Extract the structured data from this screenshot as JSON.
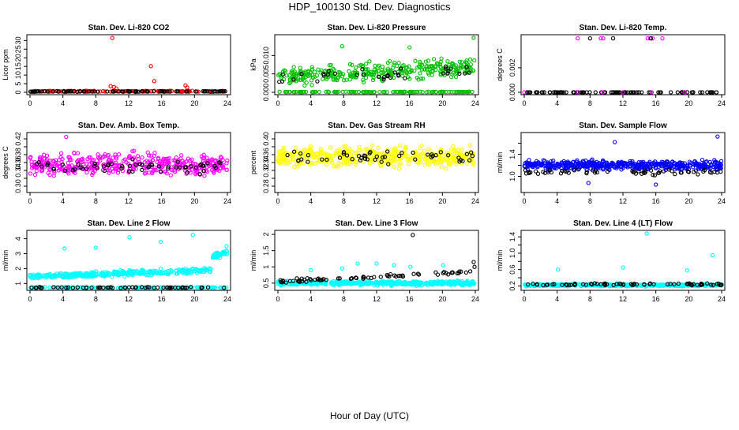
{
  "figure": {
    "title": "HDP_100130  Std. Dev. Diagnostics",
    "xlabel": "Hour of Day (UTC)"
  },
  "chart_data": [
    {
      "type": "scatter",
      "title": "Stan. Dev. Li-820 CO2",
      "ylabel": "Licor ppm",
      "xlim": [
        0,
        24
      ],
      "ylim": [
        0,
        32
      ],
      "xticks": [
        0,
        4,
        8,
        12,
        16,
        20,
        24
      ],
      "yticks": [
        0,
        5,
        10,
        15,
        20,
        25,
        30
      ],
      "series": [
        {
          "name": "dense",
          "color": "#ff0000",
          "mode": "band",
          "x_range": [
            0,
            24
          ],
          "center": 0.6,
          "spread": 0.4,
          "count": 140
        },
        {
          "name": "overlay",
          "color": "#000000",
          "mode": "band",
          "x_range": [
            0,
            24
          ],
          "center": 0.5,
          "spread": 0.3,
          "count": 90
        },
        {
          "name": "outliers",
          "color": "#ff0000",
          "mode": "points",
          "x": [
            10.0,
            9.8,
            10.2,
            10.5,
            14.7,
            15.1,
            18.9,
            19.1
          ],
          "y": [
            31.5,
            3.5,
            3.0,
            2.2,
            15.2,
            6.5,
            4.0,
            2.8
          ]
        }
      ]
    },
    {
      "type": "scatter",
      "title": "Stan. Dev. Li-820 Pressure",
      "ylabel": "kPa",
      "xlim": [
        0,
        24
      ],
      "ylim": [
        0,
        0.015
      ],
      "xticks": [
        0,
        4,
        8,
        12,
        16,
        20,
        24
      ],
      "yticks": [
        0.0,
        0.005,
        0.01
      ],
      "ytick_labels": [
        "0.000",
        "0.005",
        "0.010"
      ],
      "series": [
        {
          "name": "zero",
          "color": "#00c000",
          "mode": "band",
          "x_range": [
            0,
            24
          ],
          "center": 0.0001,
          "spread": 0.0001,
          "count": 120
        },
        {
          "name": "dense",
          "color": "#00c000",
          "mode": "trend",
          "x_range": [
            0,
            24
          ],
          "start": 0.004,
          "end": 0.007,
          "spread": 0.0035,
          "count": 320
        },
        {
          "name": "overlay",
          "color": "#000000",
          "mode": "trend",
          "x_range": [
            0,
            24
          ],
          "start": 0.003,
          "end": 0.006,
          "spread": 0.003,
          "count": 35
        },
        {
          "name": "outliers",
          "color": "#00c000",
          "mode": "points",
          "x": [
            7.8,
            23.8,
            16.0
          ],
          "y": [
            0.0125,
            0.0148,
            0.0122
          ]
        }
      ]
    },
    {
      "type": "scatter",
      "title": "Stan. Dev. Li-820 Temp.",
      "ylabel": "degrees C",
      "xlim": [
        0,
        24
      ],
      "ylim": [
        0,
        0.0045
      ],
      "xticks": [
        0,
        4,
        8,
        12,
        16,
        20,
        24
      ],
      "yticks": [
        0.0,
        0.002
      ],
      "ytick_labels": [
        "0.000",
        "0.002"
      ],
      "series": [
        {
          "name": "zero",
          "color": "#000000",
          "mode": "band",
          "x_range": [
            0,
            24
          ],
          "center": 0.0,
          "spread": 1e-05,
          "count": 90
        },
        {
          "name": "zero-m",
          "color": "#ff00ff",
          "mode": "points",
          "x": [
            0.0,
            6.5,
            9.5,
            12.0,
            15.5,
            19.5
          ],
          "y": [
            0.0,
            0.0,
            0.0,
            0.0,
            0.0,
            0.0
          ]
        },
        {
          "name": "top-m",
          "color": "#ff00ff",
          "mode": "points",
          "x": [
            6.5,
            9.3,
            9.6,
            15.0,
            15.3,
            15.6,
            16.8
          ],
          "y": [
            0.0044,
            0.0044,
            0.0044,
            0.0044,
            0.0044,
            0.0044,
            0.0044
          ]
        },
        {
          "name": "top-k",
          "color": "#000000",
          "mode": "points",
          "x": [
            8.0,
            10.8,
            15.4
          ],
          "y": [
            0.0044,
            0.0044,
            0.0044
          ]
        }
      ]
    },
    {
      "type": "scatter",
      "title": "Stan. Dev. Amb. Box Temp.",
      "ylabel": "degrees C",
      "xlim": [
        0,
        24
      ],
      "ylim": [
        0.29,
        0.43
      ],
      "xticks": [
        0,
        4,
        8,
        12,
        16,
        20,
        24
      ],
      "yticks": [
        0.3,
        0.32,
        0.34,
        0.36,
        0.38,
        0.4,
        0.42
      ],
      "ytick_labels": [
        "0.30",
        "",
        "0.34",
        "0.36",
        "0.38",
        "",
        "0.42"
      ],
      "series": [
        {
          "name": "dense",
          "color": "#ff00ff",
          "mode": "band",
          "x_range": [
            0,
            24
          ],
          "center": 0.355,
          "spread": 0.04,
          "count": 420
        },
        {
          "name": "overlay",
          "color": "#000000",
          "mode": "band",
          "x_range": [
            0,
            24
          ],
          "center": 0.35,
          "spread": 0.025,
          "count": 60
        },
        {
          "name": "outliers",
          "color": "#ff00ff",
          "mode": "points",
          "x": [
            4.4
          ],
          "y": [
            0.425
          ]
        }
      ]
    },
    {
      "type": "scatter",
      "title": "Stan. Dev. Gas Stream RH",
      "ylabel": "percent",
      "xlim": [
        0,
        24
      ],
      "ylim": [
        0.27,
        0.41
      ],
      "xticks": [
        0,
        4,
        8,
        12,
        16,
        20,
        24
      ],
      "yticks": [
        0.28,
        0.3,
        0.32,
        0.34,
        0.36,
        0.38,
        0.4
      ],
      "ytick_labels": [
        "0.28",
        "",
        "0.32",
        "0.34",
        "0.36",
        "",
        "0.40"
      ],
      "series": [
        {
          "name": "dense",
          "color": "#ffff00",
          "mode": "band",
          "x_range": [
            0,
            24
          ],
          "center": 0.355,
          "spread": 0.035,
          "count": 460
        },
        {
          "name": "overlay",
          "color": "#000000",
          "mode": "band",
          "x_range": [
            0,
            24
          ],
          "center": 0.355,
          "spread": 0.025,
          "count": 50
        }
      ]
    },
    {
      "type": "scatter",
      "title": "Stan. Dev. Sample Flow",
      "ylabel": "ml/min",
      "xlim": [
        0,
        24
      ],
      "ylim": [
        0.75,
        1.75
      ],
      "xticks": [
        0,
        4,
        8,
        12,
        16,
        20,
        24
      ],
      "yticks": [
        1.0,
        1.2,
        1.4,
        1.6
      ],
      "ytick_labels": [
        "1.0",
        "",
        "1.4",
        ""
      ],
      "series": [
        {
          "name": "dense",
          "color": "#0000ff",
          "mode": "band",
          "x_range": [
            0,
            24
          ],
          "center": 1.2,
          "spread": 0.12,
          "count": 480
        },
        {
          "name": "overlay",
          "color": "#000000",
          "mode": "band",
          "x_range": [
            0,
            24
          ],
          "center": 1.08,
          "spread": 0.07,
          "count": 60
        },
        {
          "name": "outliers",
          "color": "#0000ff",
          "mode": "points",
          "x": [
            7.8,
            16.0,
            23.5,
            11.0
          ],
          "y": [
            0.88,
            0.85,
            1.72,
            1.62
          ]
        }
      ]
    },
    {
      "type": "scatter",
      "title": "Stan. Dev. Line 2 Flow",
      "ylabel": "ml/min",
      "xlim": [
        0,
        24
      ],
      "ylim": [
        0.7,
        4.4
      ],
      "xticks": [
        0,
        4,
        8,
        12,
        16,
        20,
        24
      ],
      "yticks": [
        1,
        2,
        3,
        4
      ],
      "series": [
        {
          "name": "base",
          "color": "#00ffff",
          "mode": "band",
          "x_range": [
            0,
            24
          ],
          "center": 0.72,
          "spread": 0.06,
          "count": 150
        },
        {
          "name": "upper",
          "color": "#00ffff",
          "mode": "trend",
          "x_range": [
            0,
            22
          ],
          "start": 1.45,
          "end": 1.9,
          "spread": 0.25,
          "count": 360
        },
        {
          "name": "upper-late",
          "color": "#00ffff",
          "mode": "trend",
          "x_range": [
            22.2,
            24
          ],
          "start": 2.8,
          "end": 3.1,
          "spread": 0.3,
          "count": 40
        },
        {
          "name": "overlay",
          "color": "#000000",
          "mode": "band",
          "x_range": [
            0,
            24
          ],
          "center": 0.73,
          "spread": 0.05,
          "count": 60
        },
        {
          "name": "outliers",
          "color": "#00ffff",
          "mode": "points",
          "x": [
            4.2,
            8.0,
            12.1,
            15.9,
            19.8,
            23.9
          ],
          "y": [
            3.35,
            3.4,
            4.1,
            3.8,
            4.25,
            3.5
          ]
        }
      ]
    },
    {
      "type": "scatter",
      "title": "Stan. Dev. Line 3 Flow",
      "ylabel": "ml/min",
      "xlim": [
        0,
        24
      ],
      "ylim": [
        0.35,
        2.05
      ],
      "xticks": [
        0,
        4,
        8,
        12,
        16,
        20,
        24
      ],
      "yticks": [
        0.5,
        1.0,
        1.5,
        2.0
      ],
      "series": [
        {
          "name": "dense",
          "color": "#00ffff",
          "mode": "band",
          "x_range": [
            0,
            24
          ],
          "center": 0.5,
          "spread": 0.09,
          "count": 460
        },
        {
          "name": "overlay",
          "color": "#000000",
          "mode": "trend",
          "x_range": [
            0,
            24
          ],
          "start": 0.55,
          "end": 0.85,
          "spread": 0.08,
          "count": 70
        },
        {
          "name": "outliers",
          "color": "#00ffff",
          "mode": "points",
          "x": [
            4.0,
            7.8,
            9.7,
            12.0,
            14.1,
            16.1,
            20.1
          ],
          "y": [
            0.9,
            0.95,
            1.1,
            1.1,
            1.05,
            1.0,
            1.05
          ]
        },
        {
          "name": "outliers-k",
          "color": "#000000",
          "mode": "points",
          "x": [
            16.4,
            23.8,
            23.9
          ],
          "y": [
            1.98,
            1.15,
            1.0
          ]
        }
      ]
    },
    {
      "type": "scatter",
      "title": "Stan. Dev. Line 4 (LT) Flow",
      "ylabel": "ml/min",
      "xlim": [
        0,
        24
      ],
      "ylim": [
        0.15,
        1.5
      ],
      "xticks": [
        0,
        4,
        8,
        12,
        16,
        20,
        24
      ],
      "yticks": [
        0.2,
        0.4,
        0.6,
        0.8,
        1.0,
        1.2,
        1.4
      ],
      "ytick_labels": [
        "0.2",
        "",
        "0.6",
        "",
        "1.0",
        "",
        "1.4"
      ],
      "series": [
        {
          "name": "dense",
          "color": "#00ffff",
          "mode": "band",
          "x_range": [
            0,
            24
          ],
          "center": 0.22,
          "spread": 0.04,
          "count": 420
        },
        {
          "name": "overlay",
          "color": "#000000",
          "mode": "band",
          "x_range": [
            0,
            24
          ],
          "center": 0.24,
          "spread": 0.035,
          "count": 70
        },
        {
          "name": "outliers",
          "color": "#00ffff",
          "mode": "points",
          "x": [
            4.1,
            12.0,
            14.9,
            19.8,
            22.9
          ],
          "y": [
            0.6,
            0.65,
            1.48,
            0.58,
            0.95
          ]
        }
      ]
    }
  ]
}
